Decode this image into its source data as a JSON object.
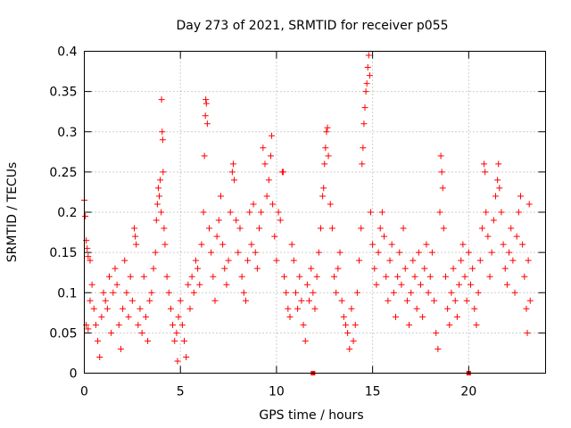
{
  "chart_data": {
    "type": "scatter",
    "title": "Day 273 of 2021, SRMTID for receiver p055",
    "xlabel": "GPS time / hours",
    "ylabel": "SRMTID / TECUs",
    "xlim": [
      0,
      24
    ],
    "ylim": [
      0,
      0.4
    ],
    "x_ticks": [
      0,
      5,
      10,
      15,
      20
    ],
    "x_tick_labels": [
      "0",
      "5",
      "10",
      "15",
      "20"
    ],
    "y_ticks": [
      0,
      0.05,
      0.1,
      0.15,
      0.2,
      0.25,
      0.3,
      0.35,
      0.4
    ],
    "y_tick_labels": [
      "0",
      "0.05",
      "0.1",
      "0.15",
      "0.2",
      "0.25",
      "0.3",
      "0.35",
      "0.4"
    ],
    "grid": true,
    "marker": "plus",
    "color": "#ff0000",
    "series": [
      {
        "name": "SRMTID",
        "points": [
          [
            0.0,
            0.215
          ],
          [
            0.05,
            0.195
          ],
          [
            0.1,
            0.165
          ],
          [
            0.15,
            0.155
          ],
          [
            0.2,
            0.145
          ],
          [
            0.3,
            0.14
          ],
          [
            0.4,
            0.11
          ],
          [
            0.5,
            0.08
          ],
          [
            0.1,
            0.06
          ],
          [
            0.2,
            0.055
          ],
          [
            0.3,
            0.09
          ],
          [
            0.6,
            0.06
          ],
          [
            0.7,
            0.04
          ],
          [
            0.8,
            0.02
          ],
          [
            0.9,
            0.07
          ],
          [
            1.0,
            0.1
          ],
          [
            1.1,
            0.09
          ],
          [
            1.2,
            0.08
          ],
          [
            1.3,
            0.12
          ],
          [
            1.4,
            0.05
          ],
          [
            1.5,
            0.1
          ],
          [
            1.6,
            0.13
          ],
          [
            1.7,
            0.11
          ],
          [
            1.8,
            0.06
          ],
          [
            1.9,
            0.03
          ],
          [
            2.0,
            0.08
          ],
          [
            2.1,
            0.14
          ],
          [
            2.2,
            0.1
          ],
          [
            2.3,
            0.07
          ],
          [
            2.4,
            0.12
          ],
          [
            2.5,
            0.09
          ],
          [
            2.6,
            0.18
          ],
          [
            2.65,
            0.17
          ],
          [
            2.7,
            0.16
          ],
          [
            2.8,
            0.06
          ],
          [
            2.9,
            0.08
          ],
          [
            3.0,
            0.05
          ],
          [
            3.1,
            0.12
          ],
          [
            3.2,
            0.07
          ],
          [
            3.3,
            0.04
          ],
          [
            3.4,
            0.09
          ],
          [
            3.5,
            0.1
          ],
          [
            3.6,
            0.13
          ],
          [
            3.7,
            0.15
          ],
          [
            3.75,
            0.19
          ],
          [
            3.8,
            0.21
          ],
          [
            3.85,
            0.23
          ],
          [
            3.9,
            0.22
          ],
          [
            3.95,
            0.24
          ],
          [
            4.0,
            0.2
          ],
          [
            4.02,
            0.34
          ],
          [
            4.05,
            0.3
          ],
          [
            4.08,
            0.29
          ],
          [
            4.1,
            0.25
          ],
          [
            4.15,
            0.18
          ],
          [
            4.2,
            0.16
          ],
          [
            4.3,
            0.12
          ],
          [
            4.4,
            0.1
          ],
          [
            4.5,
            0.08
          ],
          [
            4.6,
            0.06
          ],
          [
            4.7,
            0.04
          ],
          [
            4.8,
            0.05
          ],
          [
            4.85,
            0.015
          ],
          [
            4.9,
            0.07
          ],
          [
            5.0,
            0.09
          ],
          [
            5.1,
            0.06
          ],
          [
            5.2,
            0.04
          ],
          [
            5.3,
            0.02
          ],
          [
            5.4,
            0.11
          ],
          [
            5.5,
            0.08
          ],
          [
            5.6,
            0.12
          ],
          [
            5.7,
            0.1
          ],
          [
            5.8,
            0.14
          ],
          [
            5.9,
            0.13
          ],
          [
            6.0,
            0.11
          ],
          [
            6.1,
            0.16
          ],
          [
            6.2,
            0.2
          ],
          [
            6.25,
            0.27
          ],
          [
            6.3,
            0.32
          ],
          [
            6.32,
            0.34
          ],
          [
            6.35,
            0.335
          ],
          [
            6.4,
            0.31
          ],
          [
            6.5,
            0.18
          ],
          [
            6.6,
            0.15
          ],
          [
            6.7,
            0.12
          ],
          [
            6.8,
            0.09
          ],
          [
            6.9,
            0.17
          ],
          [
            7.0,
            0.19
          ],
          [
            7.1,
            0.22
          ],
          [
            7.2,
            0.16
          ],
          [
            7.3,
            0.13
          ],
          [
            7.4,
            0.11
          ],
          [
            7.5,
            0.14
          ],
          [
            7.6,
            0.2
          ],
          [
            7.7,
            0.25
          ],
          [
            7.75,
            0.26
          ],
          [
            7.8,
            0.24
          ],
          [
            7.9,
            0.19
          ],
          [
            8.0,
            0.15
          ],
          [
            8.1,
            0.18
          ],
          [
            8.2,
            0.12
          ],
          [
            8.3,
            0.1
          ],
          [
            8.4,
            0.09
          ],
          [
            8.5,
            0.14
          ],
          [
            8.6,
            0.2
          ],
          [
            8.7,
            0.16
          ],
          [
            8.8,
            0.21
          ],
          [
            8.9,
            0.15
          ],
          [
            9.0,
            0.13
          ],
          [
            9.1,
            0.18
          ],
          [
            9.2,
            0.2
          ],
          [
            9.3,
            0.28
          ],
          [
            9.4,
            0.26
          ],
          [
            9.5,
            0.22
          ],
          [
            9.6,
            0.24
          ],
          [
            9.7,
            0.27
          ],
          [
            9.75,
            0.295
          ],
          [
            9.8,
            0.21
          ],
          [
            9.9,
            0.17
          ],
          [
            10.0,
            0.14
          ],
          [
            10.1,
            0.2
          ],
          [
            10.2,
            0.19
          ],
          [
            10.3,
            0.25
          ],
          [
            10.35,
            0.25
          ],
          [
            10.4,
            0.12
          ],
          [
            10.5,
            0.1
          ],
          [
            10.6,
            0.08
          ],
          [
            10.7,
            0.07
          ],
          [
            10.8,
            0.16
          ],
          [
            10.9,
            0.14
          ],
          [
            11.0,
            0.1
          ],
          [
            11.1,
            0.08
          ],
          [
            11.2,
            0.12
          ],
          [
            11.3,
            0.09
          ],
          [
            11.4,
            0.06
          ],
          [
            11.5,
            0.04
          ],
          [
            11.6,
            0.11
          ],
          [
            11.7,
            0.09
          ],
          [
            11.8,
            0.13
          ],
          [
            11.9,
            0.1
          ],
          [
            12.0,
            0.08
          ],
          [
            12.1,
            0.12
          ],
          [
            12.2,
            0.15
          ],
          [
            12.3,
            0.18
          ],
          [
            12.4,
            0.22
          ],
          [
            12.45,
            0.23
          ],
          [
            12.5,
            0.26
          ],
          [
            12.55,
            0.28
          ],
          [
            12.6,
            0.3
          ],
          [
            12.65,
            0.305
          ],
          [
            12.7,
            0.27
          ],
          [
            12.8,
            0.21
          ],
          [
            12.9,
            0.18
          ],
          [
            13.0,
            0.12
          ],
          [
            13.1,
            0.1
          ],
          [
            13.2,
            0.13
          ],
          [
            13.3,
            0.15
          ],
          [
            13.4,
            0.09
          ],
          [
            13.5,
            0.07
          ],
          [
            13.6,
            0.06
          ],
          [
            13.7,
            0.05
          ],
          [
            13.8,
            0.03
          ],
          [
            13.9,
            0.08
          ],
          [
            14.0,
            0.04
          ],
          [
            14.1,
            0.06
          ],
          [
            14.2,
            0.1
          ],
          [
            14.3,
            0.14
          ],
          [
            14.4,
            0.18
          ],
          [
            14.45,
            0.26
          ],
          [
            14.5,
            0.28
          ],
          [
            14.55,
            0.31
          ],
          [
            14.6,
            0.33
          ],
          [
            14.65,
            0.35
          ],
          [
            14.7,
            0.36
          ],
          [
            14.75,
            0.38
          ],
          [
            14.8,
            0.395
          ],
          [
            14.85,
            0.37
          ],
          [
            14.9,
            0.2
          ],
          [
            15.0,
            0.16
          ],
          [
            15.1,
            0.13
          ],
          [
            15.2,
            0.11
          ],
          [
            15.3,
            0.15
          ],
          [
            15.4,
            0.18
          ],
          [
            15.5,
            0.2
          ],
          [
            15.6,
            0.17
          ],
          [
            15.7,
            0.12
          ],
          [
            15.8,
            0.09
          ],
          [
            15.9,
            0.14
          ],
          [
            16.0,
            0.16
          ],
          [
            16.1,
            0.1
          ],
          [
            16.2,
            0.07
          ],
          [
            16.3,
            0.12
          ],
          [
            16.4,
            0.15
          ],
          [
            16.5,
            0.11
          ],
          [
            16.6,
            0.18
          ],
          [
            16.7,
            0.13
          ],
          [
            16.8,
            0.09
          ],
          [
            16.9,
            0.06
          ],
          [
            17.0,
            0.1
          ],
          [
            17.1,
            0.14
          ],
          [
            17.2,
            0.12
          ],
          [
            17.3,
            0.08
          ],
          [
            17.4,
            0.15
          ],
          [
            17.5,
            0.11
          ],
          [
            17.6,
            0.07
          ],
          [
            17.7,
            0.13
          ],
          [
            17.8,
            0.16
          ],
          [
            17.9,
            0.1
          ],
          [
            18.0,
            0.12
          ],
          [
            18.1,
            0.15
          ],
          [
            18.2,
            0.09
          ],
          [
            18.3,
            0.05
          ],
          [
            18.4,
            0.03
          ],
          [
            18.5,
            0.2
          ],
          [
            18.55,
            0.27
          ],
          [
            18.6,
            0.25
          ],
          [
            18.65,
            0.23
          ],
          [
            18.7,
            0.18
          ],
          [
            18.8,
            0.12
          ],
          [
            18.9,
            0.08
          ],
          [
            19.0,
            0.06
          ],
          [
            19.1,
            0.1
          ],
          [
            19.2,
            0.13
          ],
          [
            19.3,
            0.09
          ],
          [
            19.4,
            0.07
          ],
          [
            19.5,
            0.11
          ],
          [
            19.6,
            0.14
          ],
          [
            19.7,
            0.16
          ],
          [
            19.8,
            0.12
          ],
          [
            19.9,
            0.09
          ],
          [
            20.0,
            0.15
          ],
          [
            20.1,
            0.11
          ],
          [
            20.2,
            0.13
          ],
          [
            20.3,
            0.08
          ],
          [
            20.4,
            0.06
          ],
          [
            20.5,
            0.1
          ],
          [
            20.6,
            0.14
          ],
          [
            20.7,
            0.18
          ],
          [
            20.8,
            0.26
          ],
          [
            20.85,
            0.25
          ],
          [
            20.9,
            0.2
          ],
          [
            21.0,
            0.17
          ],
          [
            21.1,
            0.12
          ],
          [
            21.2,
            0.15
          ],
          [
            21.3,
            0.19
          ],
          [
            21.4,
            0.22
          ],
          [
            21.5,
            0.24
          ],
          [
            21.55,
            0.26
          ],
          [
            21.6,
            0.23
          ],
          [
            21.7,
            0.2
          ],
          [
            21.8,
            0.16
          ],
          [
            21.9,
            0.13
          ],
          [
            22.0,
            0.11
          ],
          [
            22.1,
            0.15
          ],
          [
            22.2,
            0.18
          ],
          [
            22.3,
            0.14
          ],
          [
            22.4,
            0.1
          ],
          [
            22.5,
            0.17
          ],
          [
            22.6,
            0.2
          ],
          [
            22.7,
            0.22
          ],
          [
            22.8,
            0.16
          ],
          [
            22.9,
            0.12
          ],
          [
            23.0,
            0.08
          ],
          [
            23.05,
            0.05
          ],
          [
            23.1,
            0.14
          ],
          [
            23.15,
            0.21
          ],
          [
            23.2,
            0.09
          ]
        ]
      }
    ],
    "zero_markers_x": [
      11.9,
      20.0
    ]
  }
}
